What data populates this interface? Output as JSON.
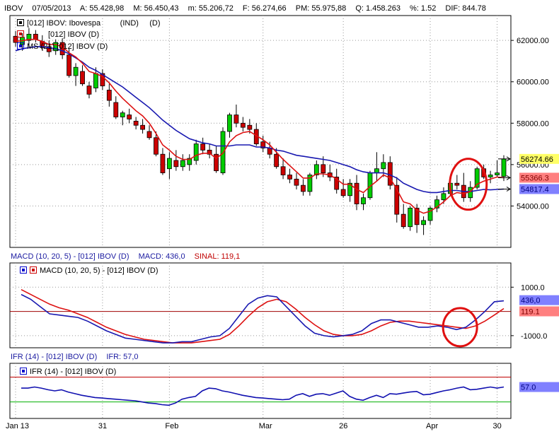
{
  "header": {
    "symbol": "IBOV",
    "date": "07/05/2013",
    "open": "A: 55.428,98",
    "high": "M: 56.450,43",
    "low": "m: 55.206,72",
    "close": "F: 56.274,66",
    "avg": "PM: 55.975,88",
    "qty": "Q: 1.458.263",
    "pct": "%: 1.52",
    "dif": "DIF: 844.78"
  },
  "legend": {
    "price": "[012] IBOV: Ibovespa",
    "price_ind": "(IND)",
    "price_d": "(D)",
    "mme": "[012] IBOV (D)",
    "mms": "MS (21)  [012] IBOV (D)",
    "macd": "MACD (10, 20, 5)  - [012] IBOV (D)",
    "ifr": "IFR (14)  - [012] IBOV (D)"
  },
  "macd_bar": {
    "title": "MACD (10, 20, 5)  - [012] IBOV (D)",
    "macd": "MACD: 436,0",
    "sinal": "SINAL: 119,1"
  },
  "ifr_bar": {
    "title": "IFR (14)  - [012] IBOV (D)",
    "ifr": "IFR: 57,0"
  },
  "colors": {
    "up": "#00cc00",
    "down": "#cc0000",
    "ma_short": "#dd1111",
    "ma_long": "#1818b0",
    "ifr_line": "#1010b0",
    "ifr_upper": "#c00000",
    "ifr_lower": "#00b000",
    "circle": "#e01010"
  },
  "chart_data": [
    {
      "type": "candlestick",
      "x_tick_labels": [
        "Jan 13",
        "31",
        "Feb",
        "Mar",
        "26",
        "Apr",
        "30"
      ],
      "y_tick_labels": [
        "62000.00",
        "60000.00",
        "58000.00",
        "56000.00",
        "54000.00"
      ],
      "ylim": [
        52000,
        63200
      ],
      "last_price_tags": [
        {
          "label": "56274.66",
          "value": 56274.66
        },
        {
          "label": "55366.3",
          "value": 55366.3
        },
        {
          "label": "54817.4",
          "value": 54817.4
        }
      ],
      "candles": [
        {
          "o": 62200,
          "h": 62450,
          "l": 61700,
          "c": 61900
        },
        {
          "o": 61800,
          "h": 62350,
          "l": 61500,
          "c": 62150
        },
        {
          "o": 62000,
          "h": 62600,
          "l": 61700,
          "c": 62300
        },
        {
          "o": 62300,
          "h": 62500,
          "l": 61900,
          "c": 62050
        },
        {
          "o": 61950,
          "h": 62250,
          "l": 61500,
          "c": 61650
        },
        {
          "o": 61700,
          "h": 62000,
          "l": 61200,
          "c": 61450
        },
        {
          "o": 61500,
          "h": 62050,
          "l": 61300,
          "c": 61900
        },
        {
          "o": 61900,
          "h": 62100,
          "l": 61100,
          "c": 61300
        },
        {
          "o": 61300,
          "h": 61600,
          "l": 60200,
          "c": 60300
        },
        {
          "o": 60300,
          "h": 60900,
          "l": 59800,
          "c": 60700
        },
        {
          "o": 60500,
          "h": 60800,
          "l": 59800,
          "c": 59900
        },
        {
          "o": 59800,
          "h": 60000,
          "l": 59200,
          "c": 59400
        },
        {
          "o": 59700,
          "h": 60700,
          "l": 59500,
          "c": 60400
        },
        {
          "o": 60400,
          "h": 60600,
          "l": 59600,
          "c": 59800
        },
        {
          "o": 59600,
          "h": 59900,
          "l": 58800,
          "c": 59100
        },
        {
          "o": 59000,
          "h": 59300,
          "l": 58200,
          "c": 58300
        },
        {
          "o": 58300,
          "h": 58600,
          "l": 57900,
          "c": 58500
        },
        {
          "o": 58400,
          "h": 58700,
          "l": 58000,
          "c": 58200
        },
        {
          "o": 58100,
          "h": 58300,
          "l": 57700,
          "c": 57900
        },
        {
          "o": 57900,
          "h": 58200,
          "l": 57500,
          "c": 57700
        },
        {
          "o": 57600,
          "h": 57900,
          "l": 57200,
          "c": 57300
        },
        {
          "o": 57300,
          "h": 57600,
          "l": 56400,
          "c": 56500
        },
        {
          "o": 56500,
          "h": 56800,
          "l": 55500,
          "c": 55600
        },
        {
          "o": 55800,
          "h": 56600,
          "l": 55300,
          "c": 56300
        },
        {
          "o": 56200,
          "h": 56700,
          "l": 55700,
          "c": 55900
        },
        {
          "o": 55900,
          "h": 56500,
          "l": 55700,
          "c": 56200
        },
        {
          "o": 56000,
          "h": 56500,
          "l": 55700,
          "c": 56300
        },
        {
          "o": 56200,
          "h": 57200,
          "l": 56000,
          "c": 57000
        },
        {
          "o": 57000,
          "h": 57300,
          "l": 56500,
          "c": 56700
        },
        {
          "o": 56700,
          "h": 57000,
          "l": 56300,
          "c": 56500
        },
        {
          "o": 56500,
          "h": 56900,
          "l": 55600,
          "c": 55700
        },
        {
          "o": 55600,
          "h": 57800,
          "l": 55500,
          "c": 57600
        },
        {
          "o": 57600,
          "h": 58500,
          "l": 57300,
          "c": 58400
        },
        {
          "o": 58400,
          "h": 58900,
          "l": 57800,
          "c": 58000
        },
        {
          "o": 58000,
          "h": 58300,
          "l": 57600,
          "c": 57800
        },
        {
          "o": 57900,
          "h": 58200,
          "l": 57500,
          "c": 57700
        },
        {
          "o": 57700,
          "h": 58000,
          "l": 56900,
          "c": 57000
        },
        {
          "o": 57100,
          "h": 57400,
          "l": 56600,
          "c": 56800
        },
        {
          "o": 56800,
          "h": 57100,
          "l": 56300,
          "c": 56500
        },
        {
          "o": 56500,
          "h": 56800,
          "l": 55800,
          "c": 55900
        },
        {
          "o": 55900,
          "h": 56300,
          "l": 55300,
          "c": 55500
        },
        {
          "o": 55500,
          "h": 55800,
          "l": 55100,
          "c": 55300
        },
        {
          "o": 55300,
          "h": 55600,
          "l": 54800,
          "c": 55000
        },
        {
          "o": 55000,
          "h": 55300,
          "l": 54500,
          "c": 54700
        },
        {
          "o": 54700,
          "h": 55600,
          "l": 54500,
          "c": 55500
        },
        {
          "o": 55500,
          "h": 56200,
          "l": 55300,
          "c": 56000
        },
        {
          "o": 56000,
          "h": 56400,
          "l": 55400,
          "c": 55600
        },
        {
          "o": 55600,
          "h": 56000,
          "l": 55200,
          "c": 55400
        },
        {
          "o": 55400,
          "h": 55800,
          "l": 54600,
          "c": 54800
        },
        {
          "o": 54800,
          "h": 55300,
          "l": 54400,
          "c": 54500
        },
        {
          "o": 54500,
          "h": 55300,
          "l": 54200,
          "c": 55100
        },
        {
          "o": 55100,
          "h": 55500,
          "l": 53800,
          "c": 54100
        },
        {
          "o": 54100,
          "h": 54600,
          "l": 53800,
          "c": 54400
        },
        {
          "o": 54400,
          "h": 55700,
          "l": 54300,
          "c": 55600
        },
        {
          "o": 55600,
          "h": 56600,
          "l": 55200,
          "c": 55800
        },
        {
          "o": 55800,
          "h": 56500,
          "l": 55400,
          "c": 56100
        },
        {
          "o": 56100,
          "h": 56400,
          "l": 54800,
          "c": 55000
        },
        {
          "o": 55000,
          "h": 55400,
          "l": 53200,
          "c": 53600
        },
        {
          "o": 53600,
          "h": 54100,
          "l": 52900,
          "c": 53000
        },
        {
          "o": 53000,
          "h": 54000,
          "l": 52800,
          "c": 53900
        },
        {
          "o": 53900,
          "h": 54100,
          "l": 52700,
          "c": 53100
        },
        {
          "o": 53100,
          "h": 53500,
          "l": 52600,
          "c": 53300
        },
        {
          "o": 53300,
          "h": 54000,
          "l": 53100,
          "c": 53900
        },
        {
          "o": 53900,
          "h": 54500,
          "l": 53700,
          "c": 54300
        },
        {
          "o": 54300,
          "h": 54900,
          "l": 54100,
          "c": 54600
        },
        {
          "o": 54600,
          "h": 55300,
          "l": 54500,
          "c": 55100
        },
        {
          "o": 55100,
          "h": 55500,
          "l": 54800,
          "c": 55000
        },
        {
          "o": 55000,
          "h": 55600,
          "l": 54200,
          "c": 54400
        },
        {
          "o": 54400,
          "h": 55200,
          "l": 54200,
          "c": 54900
        },
        {
          "o": 54900,
          "h": 55900,
          "l": 54800,
          "c": 55800
        },
        {
          "o": 55800,
          "h": 56000,
          "l": 55300,
          "c": 55400
        },
        {
          "o": 55400,
          "h": 55700,
          "l": 55100,
          "c": 55500
        },
        {
          "o": 55500,
          "h": 56200,
          "l": 55400,
          "c": 55600
        },
        {
          "o": 55428.98,
          "h": 56450.43,
          "l": 55206.72,
          "c": 56274.66
        }
      ],
      "ma_short": [
        61950,
        61980,
        62050,
        62050,
        61950,
        61800,
        61800,
        61700,
        61400,
        61200,
        60900,
        60500,
        60400,
        60250,
        59950,
        59550,
        59200,
        58900,
        58600,
        58350,
        58000,
        57500,
        56950,
        56700,
        56400,
        56250,
        56250,
        56450,
        56550,
        56550,
        56300,
        56550,
        57100,
        57400,
        57550,
        57600,
        57400,
        57200,
        56950,
        56600,
        56250,
        55950,
        55650,
        55350,
        55350,
        55550,
        55550,
        55500,
        55300,
        55050,
        55050,
        54800,
        54650,
        54950,
        55200,
        55500,
        55350,
        54800,
        54200,
        54100,
        53800,
        53650,
        53750,
        53950,
        54200,
        54500,
        54650,
        54600,
        54700,
        55050,
        55200,
        55300,
        55400,
        55366.3
      ],
      "ma_long": [
        61500,
        61600,
        61650,
        61700,
        61700,
        61650,
        61600,
        61500,
        61350,
        61150,
        60950,
        60700,
        60550,
        60350,
        60150,
        59950,
        59750,
        59500,
        59250,
        59000,
        58750,
        58450,
        58150,
        57900,
        57650,
        57450,
        57250,
        57150,
        57050,
        57000,
        56900,
        56900,
        56900,
        56950,
        56950,
        56950,
        56850,
        56850,
        56800,
        56700,
        56650,
        56550,
        56450,
        56400,
        56350,
        56300,
        56250,
        56200,
        56100,
        56000,
        55900,
        55750,
        55650,
        55600,
        55600,
        55600,
        55500,
        55350,
        55100,
        54950,
        54800,
        54700,
        54650,
        54650,
        54700,
        54750,
        54750,
        54700,
        54700,
        54750,
        54800,
        54780,
        54800,
        54817.4
      ]
    },
    {
      "type": "line",
      "name": "MACD",
      "y_tick_labels": [
        "1000.0",
        "-1000.0"
      ],
      "ylim": [
        -1500,
        2000
      ],
      "value_tags": [
        {
          "label": "436,0",
          "value": 436
        },
        {
          "label": "119.1",
          "value": 119.1
        }
      ],
      "macd": [
        700,
        500,
        200,
        -100,
        -150,
        -200,
        -250,
        -400,
        -600,
        -800,
        -950,
        -1100,
        -1150,
        -1200,
        -1250,
        -1300,
        -1300,
        -1250,
        -1250,
        -1150,
        -1050,
        -1000,
        -700,
        -200,
        300,
        550,
        650,
        600,
        200,
        -200,
        -600,
        -900,
        -1000,
        -1050,
        -1000,
        -950,
        -800,
        -500,
        -350,
        -350,
        -450,
        -550,
        -650,
        -650,
        -600,
        -650,
        -750,
        -650,
        -350,
        0,
        400,
        436
      ],
      "signal": [
        900,
        700,
        500,
        300,
        150,
        50,
        -100,
        -250,
        -450,
        -650,
        -800,
        -950,
        -1050,
        -1150,
        -1200,
        -1250,
        -1300,
        -1300,
        -1300,
        -1250,
        -1200,
        -1150,
        -950,
        -600,
        -200,
        150,
        400,
        500,
        400,
        100,
        -250,
        -550,
        -800,
        -950,
        -1000,
        -1000,
        -950,
        -800,
        -600,
        -450,
        -400,
        -400,
        -450,
        -500,
        -550,
        -600,
        -650,
        -700,
        -600,
        -400,
        -150,
        119.1
      ]
    },
    {
      "type": "line",
      "name": "IFR",
      "ylim": [
        0,
        100
      ],
      "upper_level": 70,
      "lower_level": 30,
      "value_tags": [
        {
          "label": "57.0",
          "value": 57
        }
      ],
      "values": [
        55,
        55,
        57,
        55,
        52,
        50,
        52,
        48,
        45,
        42,
        40,
        38,
        37,
        36,
        35,
        34,
        33,
        32,
        30,
        28,
        27,
        25,
        24,
        28,
        35,
        38,
        40,
        50,
        55,
        54,
        50,
        48,
        45,
        42,
        40,
        38,
        37,
        36,
        35,
        34,
        35,
        42,
        45,
        40,
        44,
        45,
        42,
        46,
        50,
        40,
        35,
        33,
        38,
        42,
        38,
        45,
        44,
        46,
        48,
        49,
        43,
        44,
        47,
        50,
        52,
        55,
        57,
        52,
        53,
        55,
        57,
        55,
        57
      ]
    }
  ]
}
